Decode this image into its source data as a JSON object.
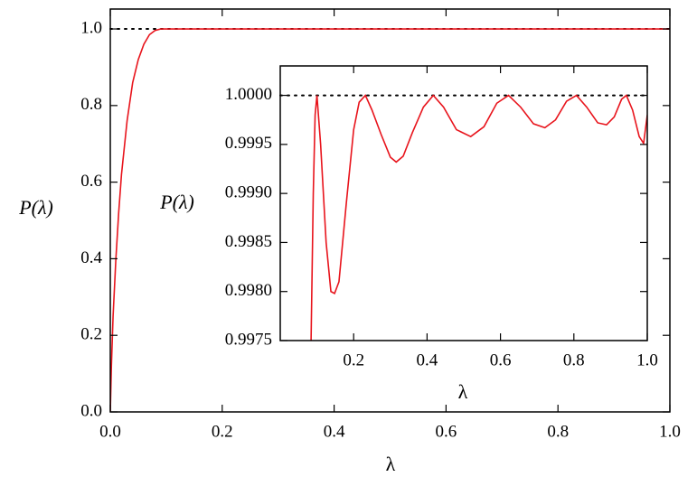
{
  "chart_data": [
    {
      "type": "line",
      "xlabel": "λ",
      "ylabel": "P(λ)",
      "xlim": [
        0,
        1
      ],
      "ylim": [
        0,
        1.052
      ],
      "xticks": [
        {
          "value": 0,
          "label": "0.0"
        },
        0.2,
        0.4,
        0.6,
        0.8,
        {
          "value": 1,
          "label": "1.0"
        }
      ],
      "yticks": [
        {
          "value": 0,
          "label": "0.0"
        },
        0.2,
        0.4,
        0.6,
        0.8,
        {
          "value": 1,
          "label": "1.0"
        }
      ],
      "reference_line": 1,
      "series": [
        {
          "color": "#e8141c",
          "x": [
            0,
            0.002,
            0.005,
            0.01,
            0.015,
            0.02,
            0.03,
            0.04,
            0.05,
            0.06,
            0.07,
            0.08,
            0.09,
            0.1,
            0.2,
            0.3,
            0.4,
            0.5,
            0.6,
            0.7,
            0.8,
            0.9,
            1.0
          ],
          "values": [
            0,
            0.12,
            0.25,
            0.4,
            0.52,
            0.62,
            0.76,
            0.86,
            0.92,
            0.96,
            0.985,
            0.996,
            1.0,
            1.0,
            1.0,
            1.0,
            1.0,
            1.0,
            1.0,
            1.0,
            1.0,
            1.0,
            1.0
          ]
        }
      ]
    },
    {
      "type": "line",
      "xlabel": "λ",
      "ylabel": "P(λ)",
      "xlim": [
        0,
        1
      ],
      "ylim": [
        0.9975,
        1.0003
      ],
      "xticks": [
        0.2,
        0.4,
        0.6,
        0.8,
        {
          "value": 1,
          "label": "1.0"
        }
      ],
      "yticks": [
        0.9975,
        {
          "value": 0.998,
          "label": "0.9980"
        },
        0.9985,
        {
          "value": 0.999,
          "label": "0.9990"
        },
        0.9995,
        {
          "value": 1,
          "label": "1.0000"
        }
      ],
      "reference_line": 1,
      "series": [
        {
          "color": "#e8141c",
          "x": [
            0.084,
            0.09,
            0.095,
            0.1,
            0.11,
            0.125,
            0.138,
            0.148,
            0.16,
            0.18,
            0.2,
            0.215,
            0.232,
            0.25,
            0.275,
            0.3,
            0.316,
            0.335,
            0.36,
            0.39,
            0.417,
            0.445,
            0.48,
            0.519,
            0.555,
            0.59,
            0.622,
            0.655,
            0.69,
            0.721,
            0.75,
            0.78,
            0.807,
            0.835,
            0.865,
            0.889,
            0.91,
            0.93,
            0.943,
            0.96,
            0.978,
            0.99,
            1.0
          ],
          "values": [
            0.9975,
            0.999,
            0.9998,
            1.0,
            0.9995,
            0.9985,
            0.998,
            0.99798,
            0.9981,
            0.9989,
            0.99965,
            0.99993,
            1.0,
            0.99985,
            0.9996,
            0.99937,
            0.99932,
            0.99938,
            0.99962,
            0.99988,
            1.0,
            0.99988,
            0.99965,
            0.99958,
            0.99968,
            0.99992,
            1.0,
            0.99988,
            0.99971,
            0.99967,
            0.99975,
            0.99994,
            1.0,
            0.99988,
            0.99972,
            0.9997,
            0.99978,
            0.99996,
            1.0,
            0.99985,
            0.99958,
            0.99951,
            0.9998
          ]
        }
      ]
    }
  ]
}
